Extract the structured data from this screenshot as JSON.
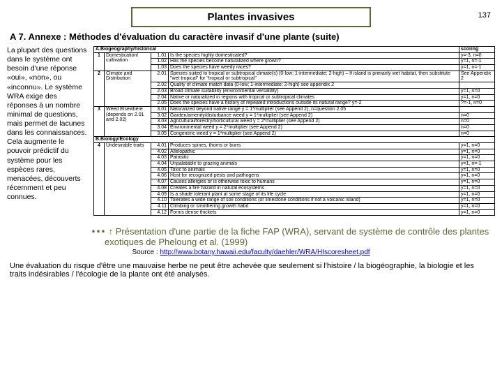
{
  "page_number": "137",
  "title": "Plantes invasives",
  "section": "A 7. Annexe : Méthodes d'évaluation du caractère invasif d'une plante (suite)",
  "sidebar_text": "La plupart des questions dans le système ont besoin d'une réponse «oui», «non», ou «inconnu». Le système WRA exige des réponses à un nombre minimal de questions, mais permet de lacunes dans les connaissances. Cela augmente le pouvoir prédictif du système pour les espèces rares, menacées, découverts récemment et peu connues.",
  "header_a": "A.Biogeography/historical",
  "header_score": "scoring",
  "header_b": "B.Biology/Ecology",
  "cat1": {
    "n": "1",
    "name": "Domestication/ cultivation"
  },
  "cat2": {
    "n": "2",
    "name": "Climate and Distribution"
  },
  "cat3": {
    "n": "3",
    "name": "Weed Elsewhere (depends on 2.01 and 2.02)"
  },
  "cat4": {
    "n": "4",
    "name": "Undesirable traits"
  },
  "rows_a": [
    {
      "c": "1.01",
      "t": "Is the species highly domesticated?",
      "s": "y=-3, n=0"
    },
    {
      "c": "1.02",
      "t": "Has the species become naturalized where grown?",
      "s": "y=1, n=-1"
    },
    {
      "c": "1.03",
      "t": "Does the species have weedy races?",
      "s": "y=1, n=-1"
    },
    {
      "c": "2.01",
      "t": "Species suited to tropical or subtropical climate(s) (0-low; 1-intermediate; 2-high) – If island is primarily wet habitat, then substitute \"wet tropical\" for \"tropical or subtropical\"",
      "s": "See Appendix 2"
    },
    {
      "c": "2.02",
      "t": "Quality of climate match data (0-low; 1-intermediate; 2-high)          see appendix 2",
      "s": ""
    },
    {
      "c": "2.03",
      "t": "Broad climate suitability (environmental versatility)",
      "s": "y=1, n=0"
    },
    {
      "c": "2.04",
      "t": "Native or naturalized in regions with tropical or subtropical climates",
      "s": "y=1, n=0"
    },
    {
      "c": "2.05",
      "t": "Does the species have a history of repeated introductions outside its natural range? y=-2",
      "s": "?=-1, n=0"
    },
    {
      "c": "3.01",
      "t": "Naturalized beyond native range          y = 1*multiplier (see Append 2), n=question 2.05",
      "s": ""
    },
    {
      "c": "3.02",
      "t": "Garden/amenity/disturbance weed                              y = 1*multiplier (see Append 2)",
      "s": "n=0"
    },
    {
      "c": "3.03",
      "t": "Agricultural/forestry/horticultural weed                        y = 2*multiplier (see Append 2)",
      "s": "n=0"
    },
    {
      "c": "3.04",
      "t": "Environmental weed                                                    y = 2*multiplier (see Append 2)",
      "s": "n=0"
    },
    {
      "c": "3.05",
      "t": "Congeneric weed                                                          y = 1*multiplier (see Append 2)",
      "s": "n=0"
    }
  ],
  "rows_b": [
    {
      "c": "4.01",
      "t": "Produces spines, thorns or burrs",
      "s": "y=1, n=0"
    },
    {
      "c": "4.02",
      "t": "Allelopathic",
      "s": "y=1, n=0"
    },
    {
      "c": "4.03",
      "t": "Parasitic",
      "s": "y=1, n=0"
    },
    {
      "c": "4.04",
      "t": "Unpalatable to grazing animals",
      "s": "y=1, n=-1"
    },
    {
      "c": "4.05",
      "t": "Toxic to animals",
      "s": "y=1, n=0"
    },
    {
      "c": "4.06",
      "t": "Host for recognized pests and pathogens",
      "s": "y=1, n=0"
    },
    {
      "c": "4.07",
      "t": "Causes allergies or is otherwise toxic to humans",
      "s": "y=1, n=0"
    },
    {
      "c": "4.08",
      "t": "Creates a fire hazard in natural ecosystems",
      "s": "y=1, n=0"
    },
    {
      "c": "4.09",
      "t": "Is a shade tolerant plant at some stage of its life cycle",
      "s": "y=1, n=0"
    },
    {
      "c": "4.10",
      "t": "Tolerates a wide range of soil conditions (or limestone conditions if not a volcanic island)",
      "s": "y=1, n=0"
    },
    {
      "c": "4.11",
      "t": "Climbing or smothering growth habit",
      "s": "y=1, n=0"
    },
    {
      "c": "4.12",
      "t": "Forms dense thickets",
      "s": "y=1, n=0"
    }
  ],
  "ellipsis": "…",
  "caption": "↑ Présentation d'une partie de la fiche FAP (WRA), servant de système de contrôle des plantes exotiques de Pheloung et al. (1999)",
  "source_label": "Source : ",
  "source_url": "http://www.botany.hawaii.edu/faculty/daehler/WRA/HIscoresheet.pdf",
  "footnote": "Une évaluation du risque d'être une mauvaise herbe ne peut être achevée que seulement si l'histoire / la biogéographie, la biologie et les traits indésirables / l'écologie de la plante ont été analysés."
}
